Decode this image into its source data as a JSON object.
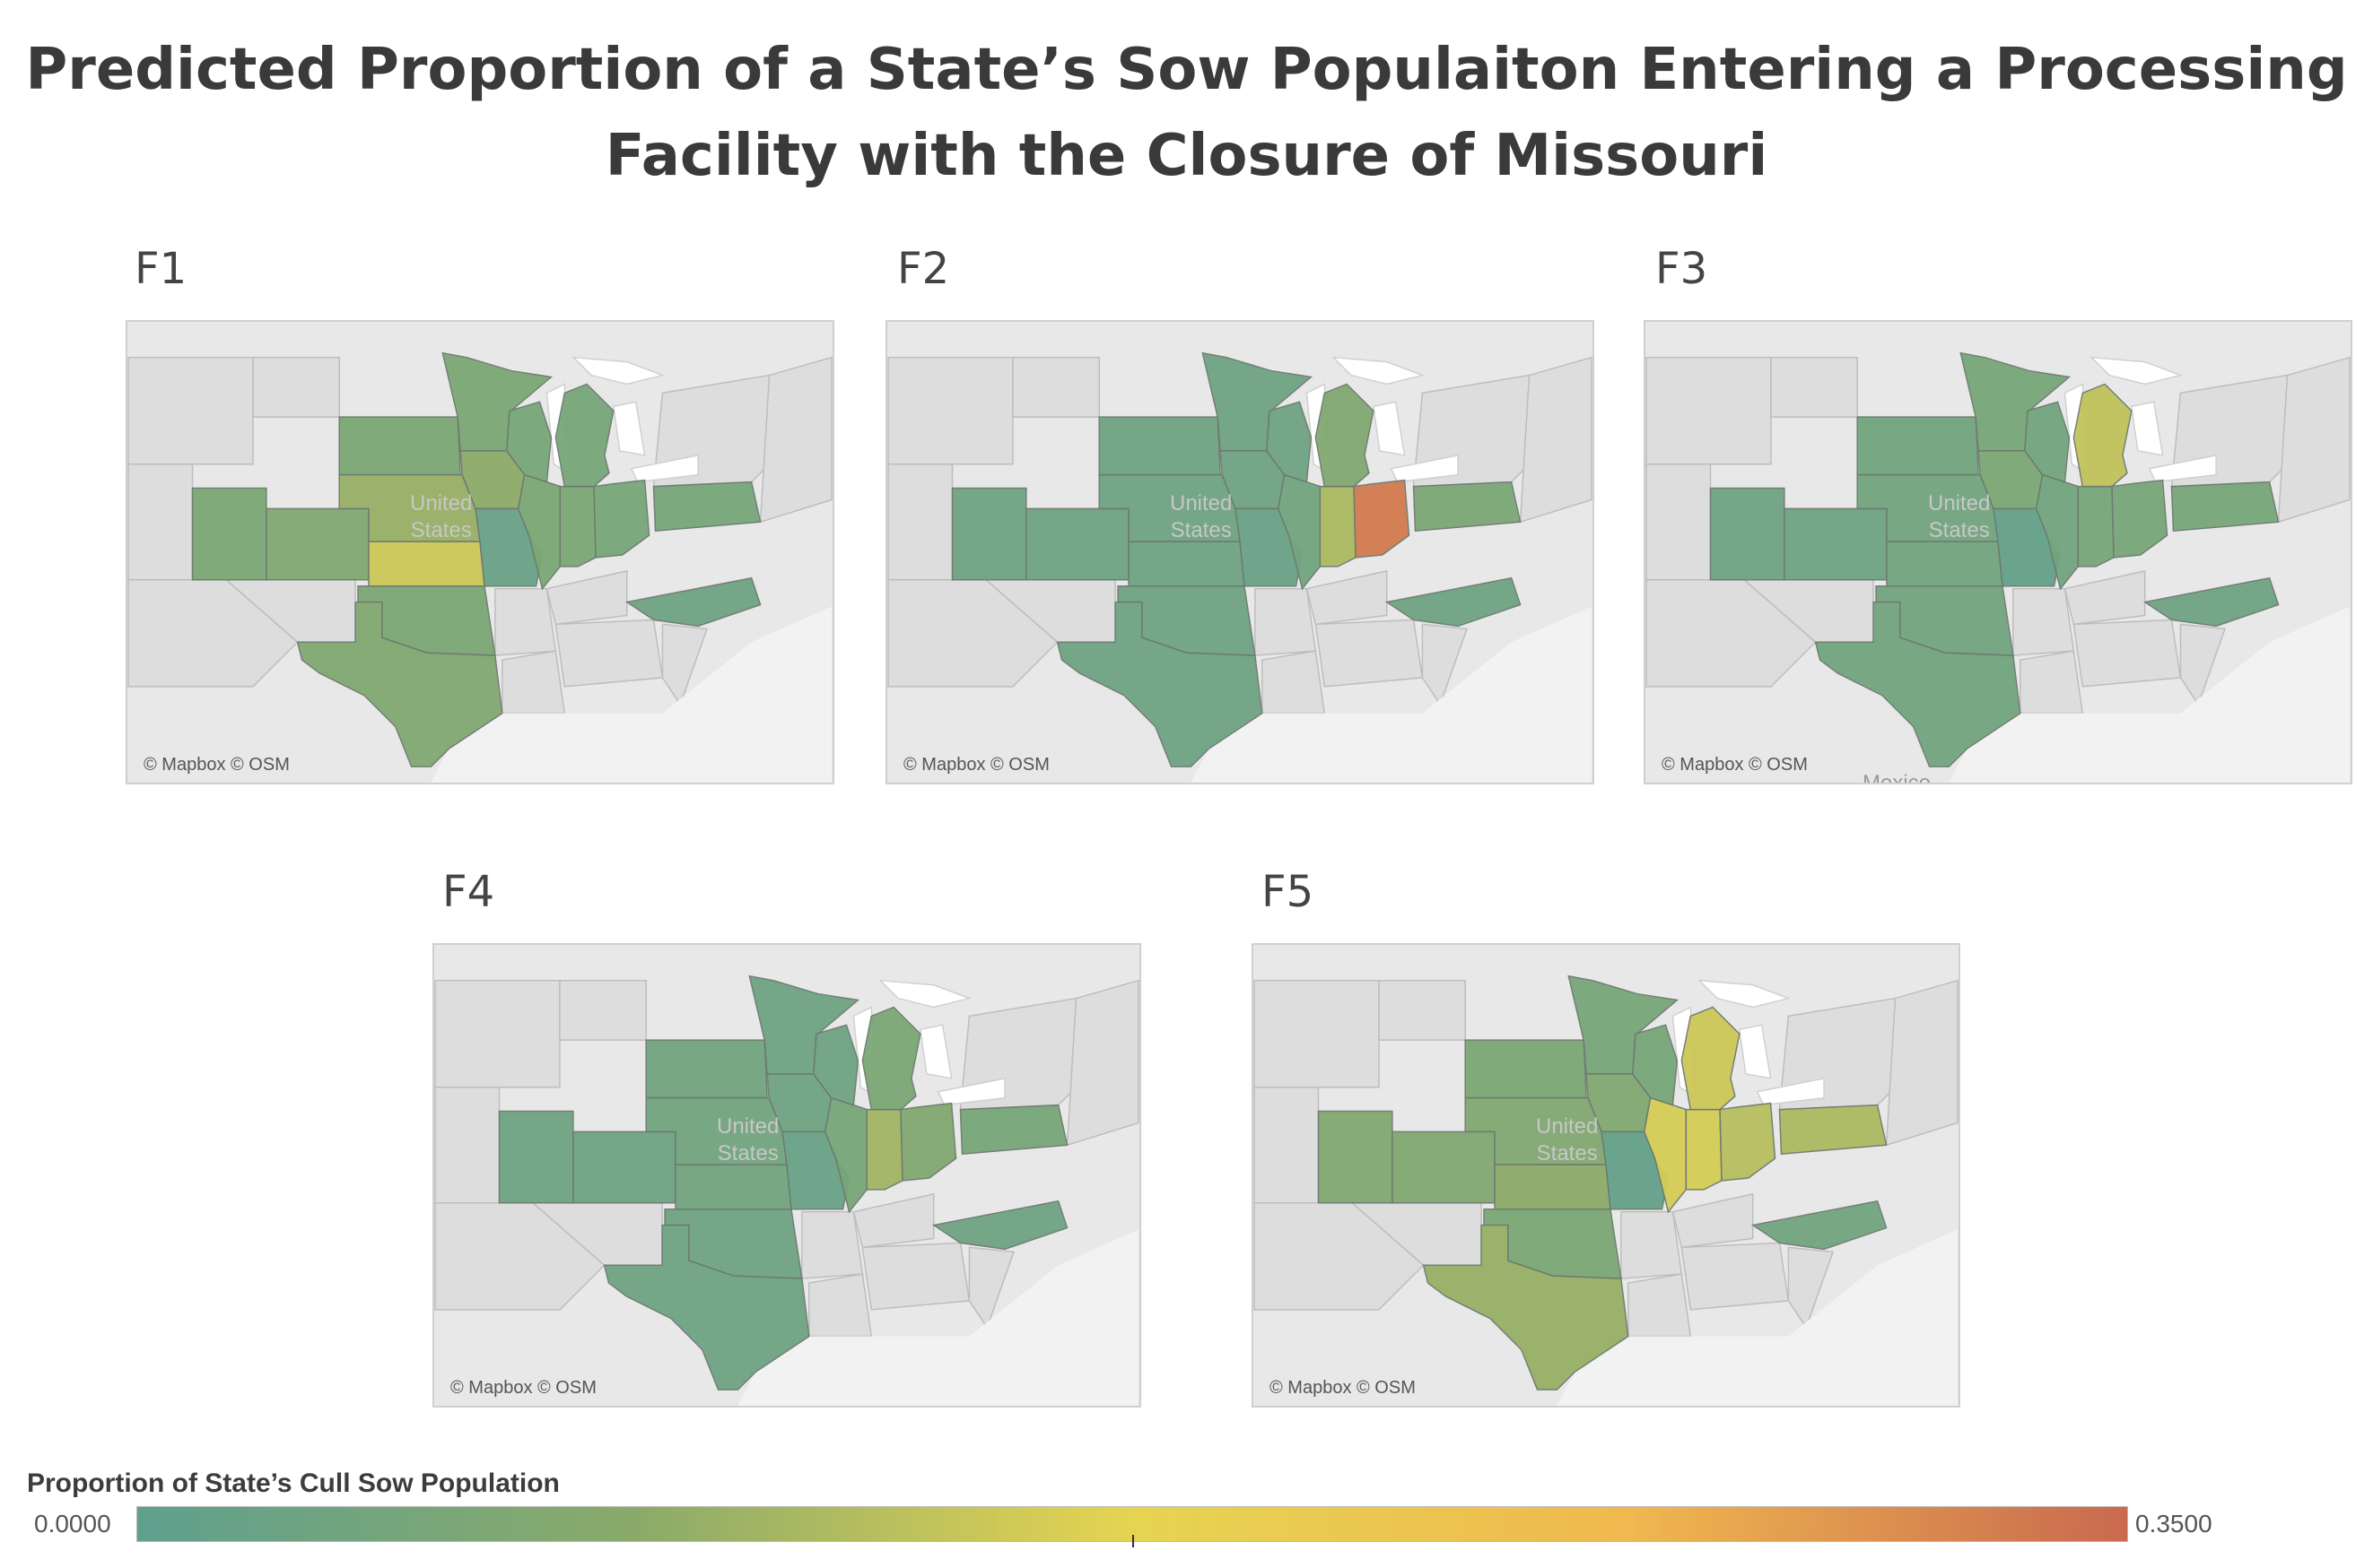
{
  "title_lines": [
    "Predicted Proportion of a State’s Sow Populaiton Entering a Processing",
    "Facility with the Closure of Missouri"
  ],
  "attribution": "© Mapbox © OSM",
  "map_labels": {
    "country": "United States",
    "country_line1": "United",
    "country_line2": "States",
    "mexico": "Mexico"
  },
  "legend": {
    "title": "Proportion of State’s Cull Sow Population",
    "min_label": "0.0000",
    "max_label": "0.3500",
    "min": 0.0,
    "max": 0.35,
    "colors": [
      "#5fa08e",
      "#8aaa6a",
      "#e6d451",
      "#f0b84f",
      "#c9694f"
    ]
  },
  "states": [
    "UT",
    "CO",
    "SD",
    "NE",
    "KS",
    "MN",
    "IA",
    "MO",
    "WI",
    "IL",
    "IN",
    "OH",
    "MI",
    "PA",
    "NC",
    "OK",
    "TX"
  ],
  "panels": [
    {
      "label": "F1",
      "values": {
        "UT": 0.06,
        "CO": 0.07,
        "SD": 0.06,
        "NE": 0.1,
        "KS": 0.15,
        "MN": 0.06,
        "IA": 0.09,
        "MO": 0.02,
        "WI": 0.05,
        "IL": 0.06,
        "IN": 0.06,
        "OH": 0.05,
        "MI": 0.05,
        "PA": 0.05,
        "NC": 0.03,
        "OK": 0.06,
        "TX": 0.07
      }
    },
    {
      "label": "F2",
      "values": {
        "UT": 0.03,
        "CO": 0.03,
        "SD": 0.03,
        "NE": 0.03,
        "KS": 0.03,
        "MN": 0.03,
        "IA": 0.03,
        "MO": 0.02,
        "WI": 0.03,
        "IL": 0.04,
        "IN": 0.12,
        "OH": 0.33,
        "MI": 0.07,
        "PA": 0.06,
        "NC": 0.03,
        "OK": 0.03,
        "TX": 0.03
      }
    },
    {
      "label": "F3",
      "values": {
        "UT": 0.03,
        "CO": 0.03,
        "SD": 0.04,
        "NE": 0.04,
        "KS": 0.04,
        "MN": 0.05,
        "IA": 0.06,
        "MO": 0.01,
        "WI": 0.04,
        "IL": 0.04,
        "IN": 0.05,
        "OH": 0.05,
        "MI": 0.14,
        "PA": 0.05,
        "NC": 0.03,
        "OK": 0.04,
        "TX": 0.04
      }
    },
    {
      "label": "F4",
      "values": {
        "UT": 0.03,
        "CO": 0.03,
        "SD": 0.04,
        "NE": 0.04,
        "KS": 0.04,
        "MN": 0.03,
        "IA": 0.03,
        "MO": 0.02,
        "WI": 0.03,
        "IL": 0.05,
        "IN": 0.11,
        "OH": 0.07,
        "MI": 0.06,
        "PA": 0.05,
        "NC": 0.03,
        "OK": 0.03,
        "TX": 0.03
      }
    },
    {
      "label": "F5",
      "values": {
        "UT": 0.07,
        "CO": 0.07,
        "SD": 0.06,
        "NE": 0.07,
        "KS": 0.09,
        "MN": 0.05,
        "IA": 0.07,
        "MO": 0.01,
        "WI": 0.05,
        "IL": 0.16,
        "IN": 0.16,
        "OH": 0.13,
        "MI": 0.15,
        "PA": 0.12,
        "NC": 0.04,
        "OK": 0.06,
        "TX": 0.1
      }
    }
  ]
}
